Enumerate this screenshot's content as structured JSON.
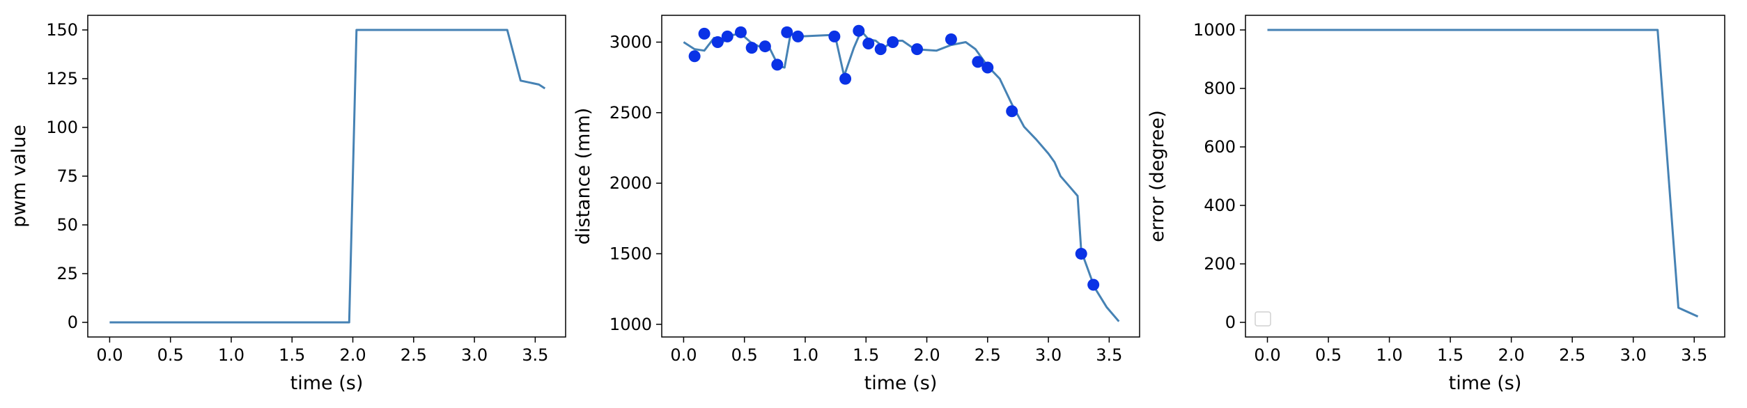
{
  "chart_data": [
    {
      "type": "line",
      "xlabel": "time (s)",
      "ylabel": "pwm value",
      "xlim": [
        -0.18,
        3.75
      ],
      "ylim": [
        -7.5,
        157.5
      ],
      "xticks": [
        0.0,
        0.5,
        1.0,
        1.5,
        2.0,
        2.5,
        3.0,
        3.5
      ],
      "xtick_labels": [
        "0.0",
        "0.5",
        "1.0",
        "1.5",
        "2.0",
        "2.5",
        "3.0",
        "3.5"
      ],
      "yticks": [
        0,
        25,
        50,
        75,
        100,
        125,
        150
      ],
      "ytick_labels": [
        "0",
        "25",
        "50",
        "75",
        "100",
        "125",
        "150"
      ],
      "grid": false,
      "line_color": "#4682b4",
      "series": [
        {
          "x": [
            0.0,
            1.97,
            2.03,
            3.27,
            3.38,
            3.53,
            3.58
          ],
          "y": [
            0,
            0,
            150,
            150,
            124,
            122,
            120
          ]
        }
      ]
    },
    {
      "type": "line",
      "xlabel": "time (s)",
      "ylabel": "distance (mm)",
      "xlim": [
        -0.18,
        3.75
      ],
      "ylim": [
        910,
        3190
      ],
      "xticks": [
        0.0,
        0.5,
        1.0,
        1.5,
        2.0,
        2.5,
        3.0,
        3.5
      ],
      "xtick_labels": [
        "0.0",
        "0.5",
        "1.0",
        "1.5",
        "2.0",
        "2.5",
        "3.0",
        "3.5"
      ],
      "yticks": [
        1000,
        1500,
        2000,
        2500,
        3000
      ],
      "ytick_labels": [
        "1000",
        "1500",
        "2000",
        "2500",
        "3000"
      ],
      "grid": false,
      "line_color": "#4682b4",
      "scatter_color": "#0a32e6",
      "series": [
        {
          "x": [
            0.0,
            0.09,
            0.17,
            0.25,
            0.32,
            0.4,
            0.47,
            0.55,
            0.62,
            0.7,
            0.78,
            0.83,
            0.88,
            0.95,
            1.2,
            1.25,
            1.32,
            1.4,
            1.46,
            1.52,
            1.58,
            1.65,
            1.72,
            1.8,
            1.9,
            2.08,
            2.2,
            2.32,
            2.4,
            2.5,
            2.6,
            2.7,
            2.8,
            2.9,
            3.0,
            3.05,
            3.1,
            3.17,
            3.24,
            3.27,
            3.38,
            3.48,
            3.58
          ],
          "y": [
            3000,
            2950,
            2940,
            3030,
            3000,
            3050,
            3060,
            3000,
            2970,
            2970,
            2830,
            2820,
            3060,
            3040,
            3050,
            3030,
            2760,
            2960,
            3080,
            3020,
            3010,
            2960,
            3010,
            3010,
            2950,
            2940,
            2980,
            3000,
            2950,
            2830,
            2740,
            2560,
            2400,
            2310,
            2210,
            2150,
            2050,
            1980,
            1910,
            1520,
            1260,
            1120,
            1020
          ]
        },
        {
          "type": "scatter",
          "x": [
            0.09,
            0.17,
            0.28,
            0.36,
            0.47,
            0.56,
            0.67,
            0.77,
            0.85,
            0.94,
            1.24,
            1.33,
            1.44,
            1.52,
            1.62,
            1.72,
            1.92,
            2.2,
            2.42,
            2.5,
            2.7,
            3.27,
            3.37
          ],
          "y": [
            2900,
            3060,
            3000,
            3040,
            3070,
            2960,
            2970,
            2840,
            3070,
            3040,
            3040,
            2740,
            3080,
            2990,
            2950,
            3000,
            2950,
            3020,
            2860,
            2820,
            2510,
            1500,
            1280
          ]
        }
      ]
    },
    {
      "type": "line",
      "xlabel": "time (s)",
      "ylabel": "error (degree)",
      "xlim": [
        -0.18,
        3.75
      ],
      "ylim": [
        -50,
        1050
      ],
      "xticks": [
        0.0,
        0.5,
        1.0,
        1.5,
        2.0,
        2.5,
        3.0,
        3.5
      ],
      "xtick_labels": [
        "0.0",
        "0.5",
        "1.0",
        "1.5",
        "2.0",
        "2.5",
        "3.0",
        "3.5"
      ],
      "yticks": [
        0,
        200,
        400,
        600,
        800,
        1000
      ],
      "ytick_labels": [
        "0",
        "200",
        "400",
        "600",
        "800",
        "1000"
      ],
      "grid": false,
      "legend": "lower-left",
      "line_color": "#4682b4",
      "series": [
        {
          "x": [
            0.0,
            3.2,
            3.37,
            3.53
          ],
          "y": [
            1000,
            1000,
            50,
            20
          ]
        }
      ]
    }
  ]
}
